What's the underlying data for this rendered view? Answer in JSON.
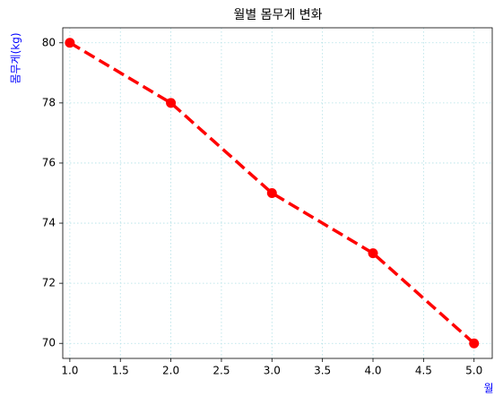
{
  "chart_data": {
    "type": "line",
    "title": "월별 몸무게 변화",
    "xlabel": "월",
    "ylabel": "몸무게(kg)",
    "label_color": "#0000ff",
    "x": [
      1,
      2,
      3,
      4,
      5
    ],
    "series": [
      {
        "color": "#ff0000",
        "values": [
          80,
          78,
          75,
          73,
          70
        ],
        "linestyle": "dashed",
        "marker": "circle"
      }
    ],
    "xlim": [
      0.93,
      5.18
    ],
    "ylim": [
      69.5,
      80.5
    ],
    "xticks": [
      {
        "value": 1,
        "label": "1.0"
      },
      {
        "value": 1.5,
        "label": "1.5"
      },
      {
        "value": 2,
        "label": "2.0"
      },
      {
        "value": 2.5,
        "label": "2.5"
      },
      {
        "value": 3,
        "label": "3.0"
      },
      {
        "value": 3.5,
        "label": "3.5"
      },
      {
        "value": 4,
        "label": "4.0"
      },
      {
        "value": 4.5,
        "label": "4.5"
      },
      {
        "value": 5,
        "label": "5.0"
      }
    ],
    "yticks": [
      70,
      72,
      74,
      76,
      78,
      80
    ],
    "grid": true
  }
}
